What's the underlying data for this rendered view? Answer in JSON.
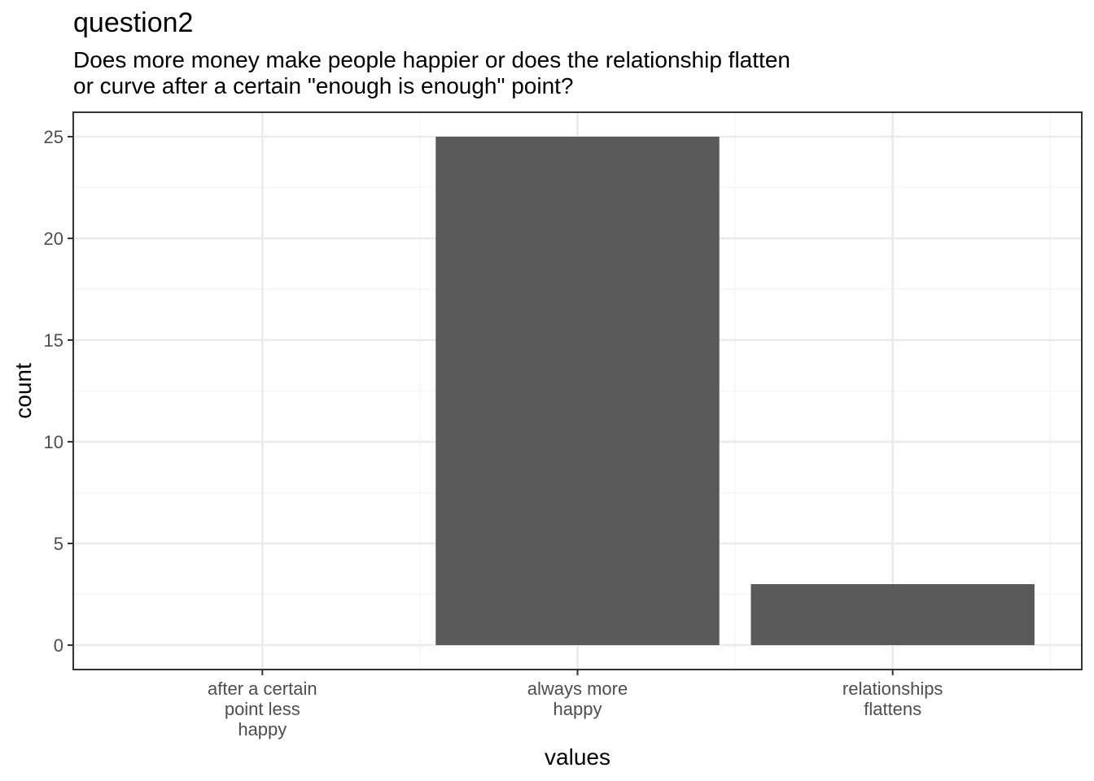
{
  "chart_data": {
    "type": "bar",
    "title": "question2",
    "subtitle": [
      "Does more money make people happier or does the relationship flatten",
      "or curve after a certain \"enough is enough\" point?"
    ],
    "xlabel": "values",
    "ylabel": "count",
    "categories": [
      [
        "after a certain",
        "point less",
        "happy"
      ],
      [
        "always more",
        "happy"
      ],
      [
        "relationships",
        "flattens"
      ]
    ],
    "values": [
      0,
      25,
      3
    ],
    "ylim": [
      -1.2,
      26.2
    ],
    "yticks": [
      0,
      5,
      10,
      15,
      20,
      25
    ],
    "ytick_labels": [
      "0",
      "5",
      "10",
      "15",
      "20",
      "25"
    ],
    "grid": true,
    "legend": "none",
    "colors": {
      "bar": "#595959",
      "grid_major": "#ebebeb",
      "grid_minor": "#f5f5f5",
      "panel_border": "#333333",
      "tick_label": "#4d4d4d",
      "axis_title": "#000000"
    }
  }
}
